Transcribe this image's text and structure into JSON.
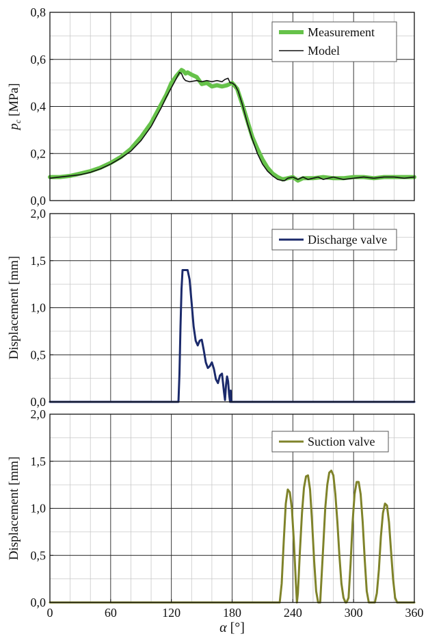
{
  "chart_data": [
    {
      "type": "line",
      "ylabel_symbol": "p",
      "ylabel_subscript": "c",
      "ylabel_unit": " [MPa]",
      "ylim": [
        0,
        0.8
      ],
      "xlim": [
        0,
        360
      ],
      "yticks": [
        "0,0",
        "0,2",
        "0,4",
        "0,6",
        "0,8"
      ],
      "ytick_values": [
        0,
        0.2,
        0.4,
        0.6,
        0.8
      ],
      "legend_position": "top-right",
      "series": [
        {
          "name": "Measurement",
          "color": "#66c24a",
          "width": "thick",
          "x": [
            0,
            10,
            20,
            30,
            40,
            50,
            60,
            70,
            80,
            90,
            100,
            110,
            115,
            120,
            125,
            128,
            130,
            132,
            134,
            136,
            140,
            145,
            150,
            155,
            160,
            165,
            170,
            175,
            180,
            185,
            190,
            195,
            200,
            205,
            210,
            215,
            220,
            225,
            230,
            235,
            240,
            245,
            250,
            260,
            270,
            280,
            290,
            300,
            310,
            320,
            330,
            340,
            350,
            360
          ],
          "y": [
            0.1,
            0.1,
            0.105,
            0.115,
            0.125,
            0.14,
            0.16,
            0.185,
            0.22,
            0.27,
            0.33,
            0.41,
            0.45,
            0.5,
            0.53,
            0.545,
            0.555,
            0.55,
            0.54,
            0.545,
            0.535,
            0.525,
            0.495,
            0.5,
            0.485,
            0.49,
            0.485,
            0.49,
            0.5,
            0.475,
            0.41,
            0.34,
            0.27,
            0.22,
            0.175,
            0.14,
            0.115,
            0.1,
            0.09,
            0.095,
            0.1,
            0.085,
            0.095,
            0.095,
            0.1,
            0.095,
            0.095,
            0.1,
            0.1,
            0.095,
            0.1,
            0.1,
            0.1,
            0.1
          ]
        },
        {
          "name": "Model",
          "color": "#111111",
          "width": "thin",
          "x": [
            0,
            10,
            20,
            30,
            40,
            50,
            60,
            70,
            80,
            90,
            100,
            110,
            115,
            120,
            125,
            128,
            130,
            132,
            134,
            138,
            145,
            150,
            155,
            160,
            165,
            170,
            173,
            176,
            178,
            180,
            183,
            186,
            190,
            195,
            200,
            205,
            210,
            215,
            220,
            225,
            230,
            232,
            235,
            240,
            245,
            250,
            255,
            260,
            265,
            270,
            275,
            280,
            290,
            300,
            310,
            320,
            330,
            340,
            350,
            360
          ],
          "y": [
            0.095,
            0.1,
            0.105,
            0.11,
            0.12,
            0.135,
            0.155,
            0.18,
            0.21,
            0.255,
            0.315,
            0.395,
            0.44,
            0.48,
            0.52,
            0.545,
            0.54,
            0.52,
            0.51,
            0.505,
            0.51,
            0.505,
            0.51,
            0.505,
            0.51,
            0.505,
            0.515,
            0.52,
            0.5,
            0.5,
            0.49,
            0.465,
            0.41,
            0.33,
            0.26,
            0.2,
            0.155,
            0.125,
            0.105,
            0.09,
            0.085,
            0.085,
            0.095,
            0.1,
            0.09,
            0.1,
            0.09,
            0.095,
            0.1,
            0.09,
            0.095,
            0.1,
            0.09,
            0.095,
            0.1,
            0.095,
            0.1,
            0.1,
            0.095,
            0.1
          ]
        }
      ]
    },
    {
      "type": "line",
      "ylabel": "Displacement [mm]",
      "ylim": [
        0,
        2.0
      ],
      "xlim": [
        0,
        360
      ],
      "yticks": [
        "0,0",
        "0,5",
        "1,0",
        "1,5",
        "2,0"
      ],
      "ytick_values": [
        0,
        0.5,
        1.0,
        1.5,
        2.0
      ],
      "legend_position": "top-right",
      "series": [
        {
          "name": "Discharge valve",
          "color": "#1b2a6b",
          "width": "medium",
          "x": [
            0,
            127,
            128,
            129,
            130,
            131,
            132,
            133,
            136,
            138,
            140,
            142,
            144,
            146,
            148,
            150,
            152,
            154,
            156,
            158,
            160,
            162,
            164,
            166,
            168,
            170,
            172,
            173,
            174,
            175,
            176,
            177,
            178,
            178.6,
            179.2,
            180,
            360
          ],
          "y": [
            0,
            0,
            0.3,
            0.8,
            1.2,
            1.4,
            1.4,
            1.4,
            1.4,
            1.3,
            1.05,
            0.8,
            0.65,
            0.6,
            0.65,
            0.66,
            0.55,
            0.42,
            0.36,
            0.38,
            0.42,
            0.35,
            0.24,
            0.2,
            0.28,
            0.3,
            0.1,
            0.02,
            0.18,
            0.27,
            0.22,
            0.08,
            0.0,
            0.12,
            0.0,
            0.0,
            0.0
          ]
        }
      ]
    },
    {
      "type": "line",
      "ylabel": "Displacement [mm]",
      "xlabel_symbol": "α",
      "xlabel_unit": " [°]",
      "ylim": [
        0,
        2.0
      ],
      "xlim": [
        0,
        360
      ],
      "yticks": [
        "0,0",
        "0,5",
        "1,0",
        "1,5",
        "2,0"
      ],
      "ytick_values": [
        0,
        0.5,
        1.0,
        1.5,
        2.0
      ],
      "xticks": [
        "0",
        "60",
        "120",
        "180",
        "240",
        "300",
        "360"
      ],
      "xtick_values": [
        0,
        60,
        120,
        180,
        240,
        300,
        360
      ],
      "legend_position": "top-right",
      "series": [
        {
          "name": "Suction valve",
          "color": "#7f832a",
          "width": "medium",
          "x": [
            0,
            227,
            229,
            231,
            233,
            235,
            237,
            239,
            241,
            243,
            244,
            245,
            247,
            249,
            251,
            253,
            255,
            257,
            259,
            261,
            263,
            265,
            267,
            268,
            270,
            272,
            274,
            276,
            278,
            280,
            282,
            284,
            286,
            288,
            290,
            292,
            293,
            295,
            297,
            299,
            301,
            303,
            305,
            307,
            309,
            311,
            313,
            315,
            317,
            319,
            321,
            323,
            325,
            327,
            329,
            331,
            333,
            335,
            337,
            339,
            341,
            343,
            345,
            360
          ],
          "y": [
            0,
            0,
            0.2,
            0.65,
            1.05,
            1.2,
            1.17,
            1.0,
            0.65,
            0.2,
            0.0,
            0.1,
            0.55,
            0.95,
            1.22,
            1.34,
            1.35,
            1.2,
            0.85,
            0.45,
            0.12,
            0.0,
            0.0,
            0.2,
            0.6,
            1.0,
            1.25,
            1.38,
            1.4,
            1.35,
            1.15,
            0.85,
            0.5,
            0.2,
            0.05,
            0.0,
            0.0,
            0.05,
            0.4,
            0.85,
            1.15,
            1.28,
            1.28,
            1.15,
            0.85,
            0.45,
            0.12,
            0.0,
            0.0,
            0.0,
            0.0,
            0.1,
            0.35,
            0.7,
            0.95,
            1.05,
            1.03,
            0.85,
            0.55,
            0.25,
            0.05,
            0.0,
            0.0,
            0.0
          ]
        }
      ]
    }
  ]
}
